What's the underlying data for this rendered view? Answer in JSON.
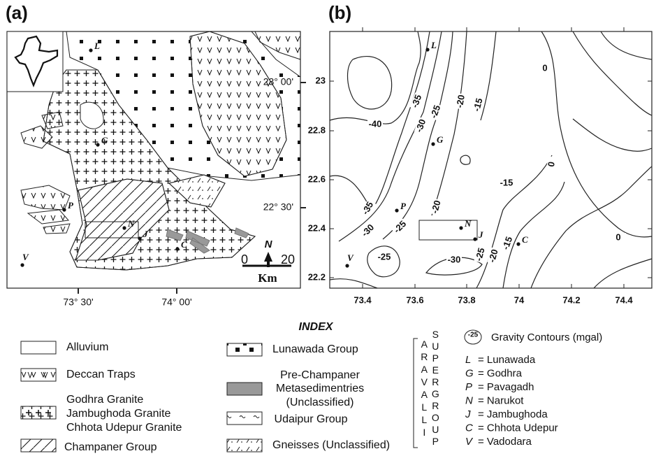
{
  "panel_a": {
    "label": "(a)",
    "lat_labels": [
      "23° 00'",
      "22° 30'"
    ],
    "lon_labels": [
      "73° 30'",
      "74° 00'"
    ],
    "places": [
      "L",
      "G",
      "P",
      "N",
      "J",
      "C",
      "V"
    ],
    "north": "N",
    "scale_labels": [
      "0",
      "20"
    ],
    "scale_unit": "Km"
  },
  "panel_b": {
    "label": "(b)",
    "xticks": [
      "73.4",
      "73.6",
      "73.8",
      "74",
      "74.2",
      "74.4"
    ],
    "yticks": [
      "23",
      "22.8",
      "22.6",
      "22.4",
      "22.2"
    ],
    "places": [
      "L",
      "G",
      "P",
      "N",
      "J",
      "C",
      "V"
    ],
    "contour_labels": [
      "-40",
      "-35",
      "-30",
      "-25",
      "-20",
      "-15",
      "0",
      "-15",
      "0",
      "0",
      "-35",
      "-30",
      "-25",
      "-20",
      "-25",
      "-30",
      "-25",
      "-20",
      "-15"
    ]
  },
  "index": {
    "title": "INDEX",
    "units": [
      {
        "lines": [
          "Alluvium"
        ]
      },
      {
        "lines": [
          "Deccan Traps"
        ]
      },
      {
        "lines": [
          "Godhra Granite",
          "Jambughoda Granite",
          "Chhota Udepur Granite"
        ]
      },
      {
        "lines": [
          "Champaner Group"
        ]
      },
      {
        "lines": [
          "Lunawada Group"
        ]
      },
      {
        "lines": [
          "Pre-Champaner",
          "Metasedimentries",
          "(Unclassified)"
        ]
      },
      {
        "lines": [
          "Udaipur Group"
        ]
      },
      {
        "lines": [
          "Gneisses (Unclassified)"
        ]
      }
    ],
    "group_words": [
      "ARAVALLI",
      "SUPERGROUP"
    ],
    "contour_sample": "-25",
    "contour_text": "Gravity Contours (mgal)",
    "abbreviations": [
      {
        "abbr": "L",
        "name": "= Lunawada"
      },
      {
        "abbr": "G",
        "name": "= Godhra"
      },
      {
        "abbr": "P",
        "name": "= Pavagadh"
      },
      {
        "abbr": "N",
        "name": "= Narukot"
      },
      {
        "abbr": "J",
        "name": "= Jambughoda"
      },
      {
        "abbr": "C",
        "name": "= Chhota Udepur"
      },
      {
        "abbr": "V",
        "name": "= Vadodara"
      }
    ]
  }
}
